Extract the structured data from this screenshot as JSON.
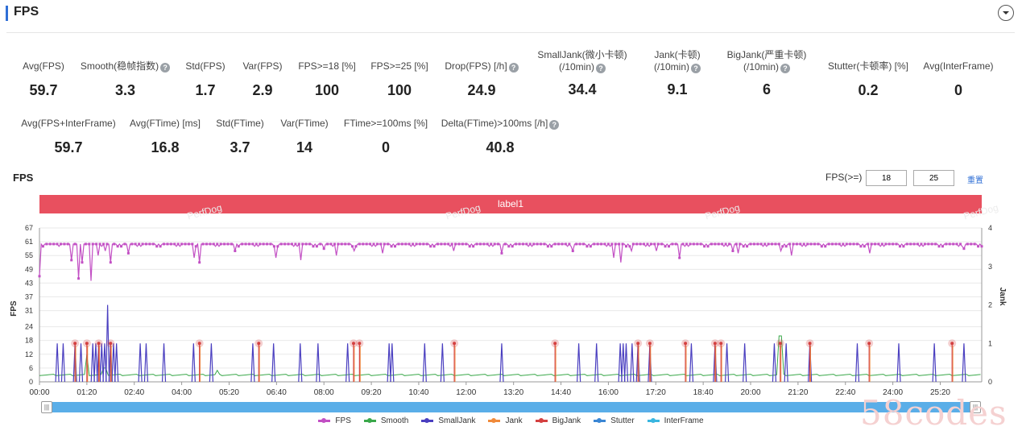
{
  "header": {
    "title": "FPS"
  },
  "metrics_row1": [
    {
      "label": "Avg(FPS)",
      "value": "59.7",
      "help": false
    },
    {
      "label": "Smooth(稳帧指数)",
      "value": "3.3",
      "help": true
    },
    {
      "label": "Std(FPS)",
      "value": "1.7",
      "help": false
    },
    {
      "label": "Var(FPS)",
      "value": "2.9",
      "help": false
    },
    {
      "label": "FPS>=18 [%]",
      "value": "100",
      "help": false
    },
    {
      "label": "FPS>=25 [%]",
      "value": "100",
      "help": false
    },
    {
      "label": "Drop(FPS) [/h]",
      "value": "24.9",
      "help": true
    },
    {
      "label": "SmallJank(微小卡顿)",
      "label2": "(/10min)",
      "value": "34.4",
      "help": true
    },
    {
      "label": "Jank(卡顿)",
      "label2": "(/10min)",
      "value": "9.1",
      "help": true
    },
    {
      "label": "BigJank(严重卡顿)",
      "label2": "(/10min)",
      "value": "6",
      "help": true
    },
    {
      "label": "Stutter(卡顿率) [%]",
      "value": "0.2",
      "help": false
    },
    {
      "label": "Avg(InterFrame)",
      "value": "0",
      "help": false
    }
  ],
  "metrics_row2": [
    {
      "label": "Avg(FPS+InterFrame)",
      "value": "59.7",
      "help": false
    },
    {
      "label": "Avg(FTime) [ms]",
      "value": "16.8",
      "help": false
    },
    {
      "label": "Std(FTime)",
      "value": "3.7",
      "help": false
    },
    {
      "label": "Var(FTime)",
      "value": "14",
      "help": false
    },
    {
      "label": "FTime>=100ms [%]",
      "value": "0",
      "help": false
    },
    {
      "label": "Delta(FTime)>100ms [/h]",
      "value": "40.8",
      "help": true
    }
  ],
  "chart_section": {
    "title": "FPS",
    "threshold_label": "FPS(>=)",
    "threshold_1": "18",
    "threshold_2": "25",
    "reset_label": "重置",
    "band_label": "label1",
    "watermark": "PerfDog"
  },
  "brand_mark": "58codes",
  "colors": {
    "fps": "#c24fc4",
    "smooth": "#3aa84a",
    "smalljank": "#4a3fc0",
    "jank": "#f08a3a",
    "bigjank": "#d44040",
    "stutter": "#3a86d4",
    "interframe": "#3ab6e0"
  },
  "chart_data": {
    "type": "line",
    "x_tick_labels": [
      "00:00",
      "01:20",
      "02:40",
      "04:00",
      "05:20",
      "06:40",
      "08:00",
      "09:20",
      "10:40",
      "12:00",
      "13:20",
      "14:40",
      "16:00",
      "17:20",
      "18:40",
      "20:00",
      "21:20",
      "22:40",
      "24:00",
      "25:20"
    ],
    "x_range_seconds": [
      0,
      1590
    ],
    "y_left": {
      "label": "FPS",
      "ticks": [
        0,
        6,
        12,
        18,
        24,
        31,
        37,
        43,
        49,
        55,
        61,
        67
      ],
      "range": [
        0,
        67
      ]
    },
    "y_right": {
      "label": "Jank",
      "ticks": [
        0,
        1,
        2,
        3,
        4
      ],
      "range": [
        0,
        4
      ]
    },
    "legend": [
      "FPS",
      "Smooth",
      "SmallJank",
      "Jank",
      "BigJank",
      "Stutter",
      "InterFrame"
    ],
    "legend_position": "bottom",
    "series": [
      {
        "name": "FPS",
        "baseline": 60,
        "dips": [
          [
            0,
            46
          ],
          [
            40,
            60
          ],
          [
            55,
            53
          ],
          [
            65,
            45
          ],
          [
            72,
            52
          ],
          [
            88,
            44
          ],
          [
            100,
            55
          ],
          [
            110,
            57
          ],
          [
            120,
            52
          ],
          [
            150,
            56
          ],
          [
            260,
            54
          ],
          [
            270,
            52
          ],
          [
            330,
            57
          ],
          [
            400,
            54
          ],
          [
            440,
            53
          ],
          [
            480,
            58
          ],
          [
            500,
            55
          ],
          [
            530,
            57
          ],
          [
            580,
            56
          ],
          [
            700,
            57
          ],
          [
            780,
            56
          ],
          [
            900,
            57
          ],
          [
            970,
            54
          ],
          [
            980,
            52
          ],
          [
            1000,
            57
          ],
          [
            1040,
            57
          ],
          [
            1080,
            54
          ],
          [
            1170,
            57
          ],
          [
            1180,
            56
          ],
          [
            1250,
            57
          ],
          [
            1270,
            55
          ],
          [
            1400,
            56
          ],
          [
            1560,
            58
          ]
        ]
      },
      {
        "name": "Smooth",
        "baseline": 3,
        "spikes": [
          [
            80,
            12
          ],
          [
            110,
            6
          ],
          [
            300,
            5
          ],
          [
            1250,
            20
          ]
        ]
      },
      {
        "name": "SmallJank",
        "spikes": [
          [
            30,
            1
          ],
          [
            40,
            1
          ],
          [
            60,
            1
          ],
          [
            70,
            1
          ],
          [
            90,
            1
          ],
          [
            95,
            1
          ],
          [
            100,
            1
          ],
          [
            105,
            1
          ],
          [
            110,
            1
          ],
          [
            115,
            2
          ],
          [
            120,
            1
          ],
          [
            125,
            1
          ],
          [
            130,
            1
          ],
          [
            170,
            1
          ],
          [
            180,
            1
          ],
          [
            210,
            1
          ],
          [
            260,
            1
          ],
          [
            290,
            1
          ],
          [
            360,
            1
          ],
          [
            395,
            1
          ],
          [
            440,
            1
          ],
          [
            470,
            1
          ],
          [
            520,
            1
          ],
          [
            590,
            1
          ],
          [
            595,
            1
          ],
          [
            650,
            1
          ],
          [
            680,
            1
          ],
          [
            780,
            1
          ],
          [
            910,
            1
          ],
          [
            940,
            1
          ],
          [
            980,
            1
          ],
          [
            985,
            1
          ],
          [
            990,
            1
          ],
          [
            1000,
            1
          ],
          [
            1010,
            1
          ],
          [
            1030,
            1
          ],
          [
            1100,
            1
          ],
          [
            1140,
            1
          ],
          [
            1160,
            1
          ],
          [
            1190,
            1
          ],
          [
            1240,
            1
          ],
          [
            1260,
            1
          ],
          [
            1300,
            1
          ],
          [
            1380,
            1
          ],
          [
            1450,
            1
          ],
          [
            1510,
            1
          ],
          [
            1560,
            1
          ]
        ]
      },
      {
        "name": "Jank",
        "points": [
          [
            60,
            1
          ],
          [
            80,
            1
          ],
          [
            100,
            1
          ],
          [
            120,
            1
          ],
          [
            270,
            1
          ],
          [
            370,
            1
          ],
          [
            530,
            1
          ],
          [
            540,
            1
          ],
          [
            700,
            1
          ],
          [
            870,
            1
          ],
          [
            1010,
            1
          ],
          [
            1030,
            1
          ],
          [
            1090,
            1
          ],
          [
            1140,
            1
          ],
          [
            1150,
            1
          ],
          [
            1250,
            1
          ],
          [
            1300,
            1
          ],
          [
            1400,
            1
          ],
          [
            1540,
            1
          ]
        ]
      },
      {
        "name": "BigJank",
        "points": [
          [
            60,
            1
          ],
          [
            80,
            1
          ],
          [
            100,
            1
          ],
          [
            120,
            1
          ],
          [
            270,
            1
          ],
          [
            370,
            1
          ],
          [
            530,
            1
          ],
          [
            540,
            1
          ],
          [
            700,
            1
          ],
          [
            870,
            1
          ],
          [
            1010,
            1
          ],
          [
            1030,
            1
          ],
          [
            1090,
            1
          ],
          [
            1140,
            1
          ],
          [
            1150,
            1
          ],
          [
            1250,
            1
          ],
          [
            1300,
            1
          ],
          [
            1400,
            1
          ],
          [
            1540,
            1
          ]
        ]
      },
      {
        "name": "Stutter",
        "values": []
      },
      {
        "name": "InterFrame",
        "values": []
      }
    ]
  }
}
